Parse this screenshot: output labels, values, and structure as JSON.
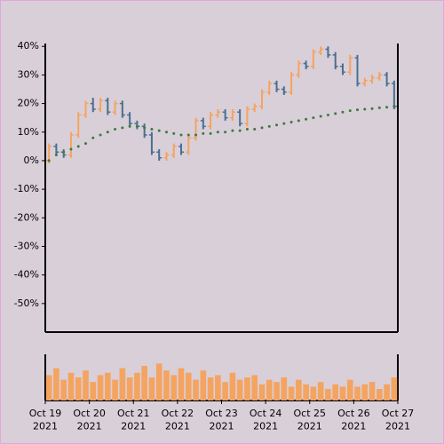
{
  "chart_data": {
    "type": "ohlc",
    "x": [
      0,
      4,
      8,
      12,
      16,
      20,
      24,
      28,
      32,
      36,
      40,
      44,
      48,
      52,
      56,
      60,
      64,
      68,
      72,
      76,
      80,
      84,
      88,
      92,
      96,
      100,
      104,
      108,
      112,
      116,
      120,
      124,
      128,
      132,
      136,
      140,
      144,
      148,
      152,
      156,
      160,
      164,
      168,
      172,
      176,
      180,
      184,
      188
    ],
    "open": [
      0,
      5,
      3,
      2,
      9,
      16,
      20,
      18,
      21,
      17,
      20,
      16,
      13,
      12,
      9,
      3,
      1,
      2,
      5,
      3,
      8,
      14,
      12,
      16,
      17,
      15,
      17,
      13,
      18,
      19,
      24,
      27,
      25,
      24,
      30,
      34,
      33,
      38,
      39,
      37,
      33,
      31,
      36,
      27,
      28,
      29,
      30,
      27
    ],
    "high": [
      6,
      6,
      4,
      10,
      17,
      21,
      22,
      22,
      22,
      21,
      21,
      17,
      14,
      13,
      10,
      4,
      3,
      6,
      6,
      9,
      15,
      15,
      17,
      18,
      18,
      18,
      18,
      19,
      20,
      25,
      28,
      28,
      26,
      31,
      35,
      35,
      39,
      40,
      40,
      38,
      34,
      37,
      37,
      29,
      30,
      31,
      31,
      28
    ],
    "low": [
      -1,
      2,
      1,
      1,
      8,
      15,
      17,
      17,
      16,
      16,
      15,
      12,
      11,
      8,
      2,
      0,
      0,
      1,
      2,
      2,
      7,
      11,
      11,
      15,
      14,
      14,
      12,
      12,
      17,
      18,
      23,
      24,
      23,
      23,
      29,
      32,
      32,
      37,
      36,
      32,
      30,
      30,
      26,
      26,
      27,
      28,
      26,
      18
    ],
    "close": [
      5,
      3,
      2,
      9,
      16,
      20,
      18,
      21,
      17,
      20,
      16,
      13,
      12,
      9,
      3,
      1,
      2,
      5,
      3,
      8,
      14,
      12,
      16,
      17,
      15,
      17,
      13,
      18,
      19,
      24,
      27,
      25,
      24,
      30,
      34,
      33,
      38,
      39,
      37,
      33,
      31,
      36,
      27,
      28,
      29,
      30,
      27,
      19
    ],
    "up_color": "#f4a460",
    "down_color": "#4a6f8f",
    "moving_average": {
      "values": [
        0,
        2,
        3,
        4,
        5,
        6,
        8,
        9,
        10,
        11,
        11.5,
        12,
        12,
        11.5,
        11,
        10.5,
        10,
        9.5,
        9,
        9,
        9,
        9.5,
        9.5,
        10,
        10,
        10.5,
        10.5,
        11,
        11,
        11.5,
        12,
        12.5,
        13,
        13.5,
        14,
        14.5,
        15,
        15.5,
        16,
        16.5,
        17,
        17.5,
        17.8,
        18,
        18.2,
        18.5,
        18.7,
        19
      ],
      "color": "#3c7a3c"
    },
    "volume": {
      "values": [
        55,
        70,
        45,
        60,
        50,
        65,
        40,
        55,
        60,
        45,
        70,
        50,
        60,
        75,
        50,
        80,
        65,
        55,
        70,
        60,
        45,
        65,
        50,
        55,
        40,
        60,
        45,
        50,
        55,
        35,
        45,
        40,
        50,
        30,
        45,
        35,
        30,
        40,
        25,
        35,
        30,
        45,
        30,
        35,
        40,
        25,
        35,
        50
      ],
      "color": "#f4a460",
      "ylim": [
        0,
        100
      ]
    },
    "xlim": [
      0,
      192
    ],
    "xticks": [
      {
        "value": 0,
        "label": "Oct 19\n2021"
      },
      {
        "value": 24,
        "label": "Oct 20\n2021"
      },
      {
        "value": 48,
        "label": "Oct 21\n2021"
      },
      {
        "value": 72,
        "label": "Oct 22\n2021"
      },
      {
        "value": 96,
        "label": "Oct 23\n2021"
      },
      {
        "value": 120,
        "label": "Oct 24\n2021"
      },
      {
        "value": 144,
        "label": "Oct 25\n2021"
      },
      {
        "value": 168,
        "label": "Oct 26\n2021"
      },
      {
        "value": 192,
        "label": "Oct 27\n2021"
      }
    ],
    "ylim": [
      -60,
      41
    ],
    "yticks": [
      {
        "value": 40,
        "label": "40%"
      },
      {
        "value": 30,
        "label": "30%"
      },
      {
        "value": 20,
        "label": "20%"
      },
      {
        "value": 10,
        "label": "10%"
      },
      {
        "value": 0,
        "label": "0%"
      },
      {
        "value": -10,
        "label": "-10%"
      },
      {
        "value": -20,
        "label": "-20%"
      },
      {
        "value": -30,
        "label": "-30%"
      },
      {
        "value": -40,
        "label": "-40%"
      },
      {
        "value": -50,
        "label": "-50%"
      }
    ]
  }
}
